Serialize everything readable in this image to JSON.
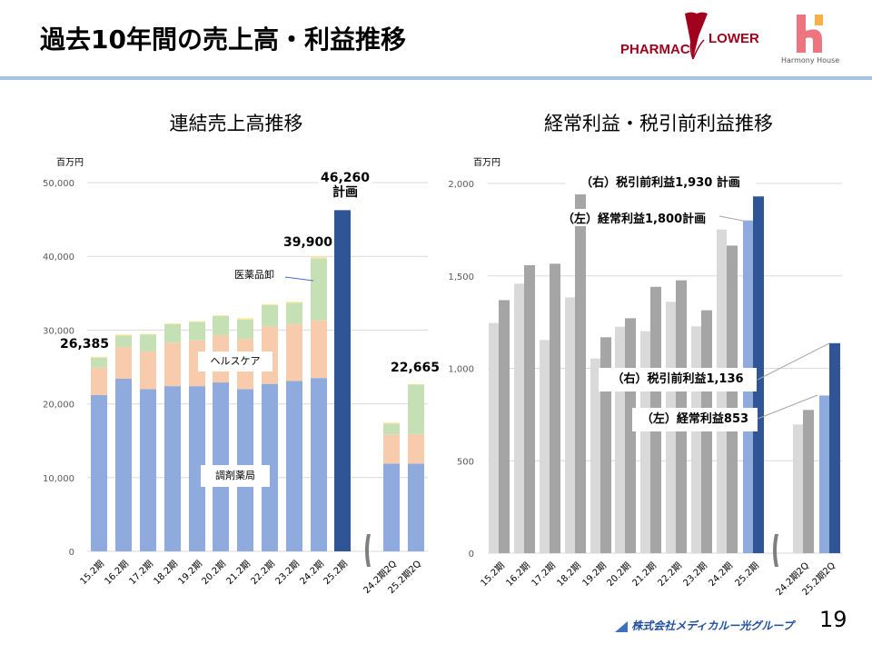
{
  "header": {
    "title": "過去10年間の売上高・利益推移",
    "logos": {
      "pharmacy_flower": "PHARMAC FLOWER",
      "pharmacy_flower_left": "PHARMAC",
      "pharmacy_flower_right": "LOWER",
      "harmony_house": "Harmony House"
    }
  },
  "colors": {
    "rule": "#a9c1e6",
    "dispensing": "#8faadc",
    "healthcare": "#f8cbad",
    "wholesale": "#c5e0b4",
    "other": "#ffe699",
    "plan": "#2f5597",
    "ordinary": "#d9d9d9",
    "pretax": "#a5a5a5",
    "ordinary_highlight": "#8faadc",
    "pretax_highlight": "#2f5597"
  },
  "chart_data": [
    {
      "type": "bar",
      "stacked": true,
      "title": "連結売上高推移",
      "ylabel": "百万円",
      "ylim": [
        0,
        50000
      ],
      "yticks": [
        "0",
        "10,000",
        "20,000",
        "30,000",
        "40,000",
        "50,000"
      ],
      "grid": true,
      "categories": [
        "15.2期",
        "16.2期",
        "17.2期",
        "18.2期",
        "19.2期",
        "20.2期",
        "21.2期",
        "22.2期",
        "23.2期",
        "24.2期",
        "25.2期",
        "24.2期2Q",
        "25.2期2Q"
      ],
      "series": [
        {
          "name": "調剤薬局",
          "values": [
            21200,
            23400,
            22000,
            22400,
            22400,
            22900,
            22000,
            22700,
            23100,
            23500,
            null,
            11900,
            11900
          ]
        },
        {
          "name": "ヘルスケア",
          "values": [
            3700,
            4300,
            5100,
            5900,
            6200,
            6400,
            6800,
            7800,
            7700,
            7800,
            null,
            3900,
            4000
          ]
        },
        {
          "name": "医薬品卸",
          "values": [
            1350,
            1550,
            2300,
            2500,
            2500,
            2600,
            2600,
            2900,
            2900,
            8400,
            null,
            1500,
            6700
          ]
        },
        {
          "name": "",
          "values": [
            135,
            150,
            100,
            100,
            100,
            100,
            200,
            100,
            150,
            200,
            null,
            150,
            65
          ]
        },
        {
          "name": "計画",
          "values": [
            null,
            null,
            null,
            null,
            null,
            null,
            null,
            null,
            null,
            null,
            46260,
            null,
            null
          ]
        }
      ],
      "annotations": {
        "first_total": "26,385",
        "last_total": "39,900",
        "plan_total": "46,260",
        "plan_label": "計画",
        "half_total": "22,665"
      }
    },
    {
      "type": "bar",
      "title": "経常利益・税引前利益推移",
      "ylabel": "百万円",
      "ylim": [
        0,
        2000
      ],
      "yticks": [
        "0",
        "500",
        "1,000",
        "1,500",
        "2,000"
      ],
      "grid": true,
      "categories": [
        "15.2期",
        "16.2期",
        "17.2期",
        "18.2期",
        "19.2期",
        "20.2期",
        "21.2期",
        "22.2期",
        "23.2期",
        "24.2期",
        "25.2期",
        "24.2期2Q",
        "25.2期2Q"
      ],
      "series": [
        {
          "name": "経常利益",
          "axis": "left",
          "values": [
            1245,
            1458,
            1153,
            1384,
            1053,
            1225,
            1201,
            1360,
            1227,
            1751,
            1800,
            696,
            853
          ]
        },
        {
          "name": "税引前利益",
          "axis": "right",
          "values": [
            1369,
            1558,
            1566,
            1941,
            1168,
            1271,
            1441,
            1476,
            1314,
            1664,
            1930,
            775,
            1136
          ]
        }
      ],
      "annotations": {
        "pretax_plan": "（右）税引前利益1,930 計画",
        "ordinary_plan": "（左）経常利益1,800計画",
        "pretax_half": "（右）税引前利益1,136",
        "ordinary_half": "（左）経常利益853"
      }
    }
  ],
  "footer": {
    "company": "株式会社メディカルー光グループ",
    "page_number": "19"
  }
}
